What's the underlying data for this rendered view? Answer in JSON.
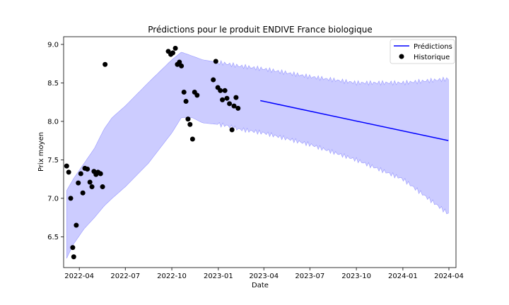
{
  "chart_data": {
    "type": "line",
    "title": "Prédictions pour le produit ENDIVE France biologique",
    "xlabel": "Date",
    "ylabel": "Prix moyen",
    "xlim": [
      "2022-03-01",
      "2024-04-15"
    ],
    "ylim": [
      6.1,
      9.1
    ],
    "x_ticks": [
      "2022-04-01",
      "2022-07-01",
      "2022-10-01",
      "2023-01-01",
      "2023-04-01",
      "2023-07-01",
      "2023-10-01",
      "2024-01-01",
      "2024-04-01"
    ],
    "x_tick_labels": [
      "2022-04",
      "2022-07",
      "2022-10",
      "2023-01",
      "2023-04",
      "2023-07",
      "2023-10",
      "2024-01",
      "2024-04"
    ],
    "y_ticks": [
      6.5,
      7.0,
      7.5,
      8.0,
      8.5,
      9.0
    ],
    "y_tick_labels": [
      "6.5",
      "7.0",
      "7.5",
      "8.0",
      "8.5",
      "9.0"
    ],
    "legend": {
      "position": "top-right",
      "entries": [
        "Prédictions",
        "Historique"
      ]
    },
    "colors": {
      "prediction": "#0000ff",
      "band": "#ccccff",
      "band_edge": "#9999ff",
      "history": "#000000"
    },
    "series": [
      {
        "name": "Prédictions",
        "type": "line",
        "x": [
          "2023-03-25",
          "2024-03-31"
        ],
        "values": [
          8.27,
          7.75
        ]
      },
      {
        "name": "Historique",
        "type": "scatter",
        "x": [
          "2022-03-07",
          "2022-03-11",
          "2022-03-15",
          "2022-03-19",
          "2022-03-21",
          "2022-03-26",
          "2022-03-30",
          "2022-04-04",
          "2022-04-08",
          "2022-04-12",
          "2022-04-17",
          "2022-04-22",
          "2022-04-26",
          "2022-04-30",
          "2022-05-04",
          "2022-05-08",
          "2022-05-13",
          "2022-05-17",
          "2022-05-22",
          "2022-09-24",
          "2022-09-29",
          "2022-10-03",
          "2022-10-08",
          "2022-10-12",
          "2022-10-16",
          "2022-10-20",
          "2022-10-25",
          "2022-10-29",
          "2022-11-02",
          "2022-11-06",
          "2022-11-11",
          "2022-11-15",
          "2022-11-20",
          "2022-12-22",
          "2022-12-27",
          "2022-12-31",
          "2023-01-05",
          "2023-01-09",
          "2023-01-14",
          "2023-01-18",
          "2023-01-23",
          "2023-01-28",
          "2023-02-01",
          "2023-02-05",
          "2023-02-09"
        ],
        "values": [
          7.42,
          7.34,
          7.0,
          6.36,
          6.24,
          6.65,
          7.2,
          7.32,
          7.07,
          7.39,
          7.38,
          7.21,
          7.15,
          7.35,
          7.31,
          7.34,
          7.32,
          7.15,
          8.74,
          8.91,
          8.87,
          8.89,
          8.95,
          8.74,
          8.77,
          8.72,
          8.38,
          8.26,
          8.03,
          7.96,
          7.77,
          8.38,
          8.34,
          8.54,
          8.78,
          8.44,
          8.4,
          8.28,
          8.4,
          8.3,
          8.23,
          7.89,
          8.2,
          8.31,
          8.17
        ]
      }
    ],
    "band": {
      "upper": {
        "x": [
          "2022-03-07",
          "2022-03-20",
          "2022-04-10",
          "2022-05-01",
          "2022-05-20",
          "2022-06-05",
          "2022-07-01",
          "2022-08-15",
          "2022-10-01",
          "2022-10-20",
          "2022-11-10",
          "2022-12-01",
          "2023-01-15",
          "2023-02-10",
          "2023-04-01",
          "2023-07-01",
          "2023-10-01",
          "2024-01-01",
          "2024-03-31"
        ],
        "values": [
          7.1,
          7.25,
          7.45,
          7.65,
          7.9,
          8.05,
          8.2,
          8.5,
          8.8,
          8.9,
          8.85,
          8.8,
          8.75,
          8.72,
          8.68,
          8.58,
          8.5,
          8.5,
          8.55
        ]
      },
      "lower": {
        "x": [
          "2022-03-07",
          "2022-03-20",
          "2022-04-10",
          "2022-05-01",
          "2022-05-20",
          "2022-06-05",
          "2022-07-01",
          "2022-08-15",
          "2022-10-01",
          "2022-10-20",
          "2022-11-10",
          "2022-12-01",
          "2023-01-15",
          "2023-02-10",
          "2023-04-01",
          "2023-07-01",
          "2023-10-01",
          "2024-01-01",
          "2024-03-31"
        ],
        "values": [
          6.22,
          6.4,
          6.6,
          6.75,
          6.9,
          7.0,
          7.15,
          7.45,
          7.85,
          8.05,
          8.05,
          7.98,
          7.95,
          7.9,
          7.85,
          7.7,
          7.5,
          7.25,
          6.8
        ]
      }
    }
  }
}
